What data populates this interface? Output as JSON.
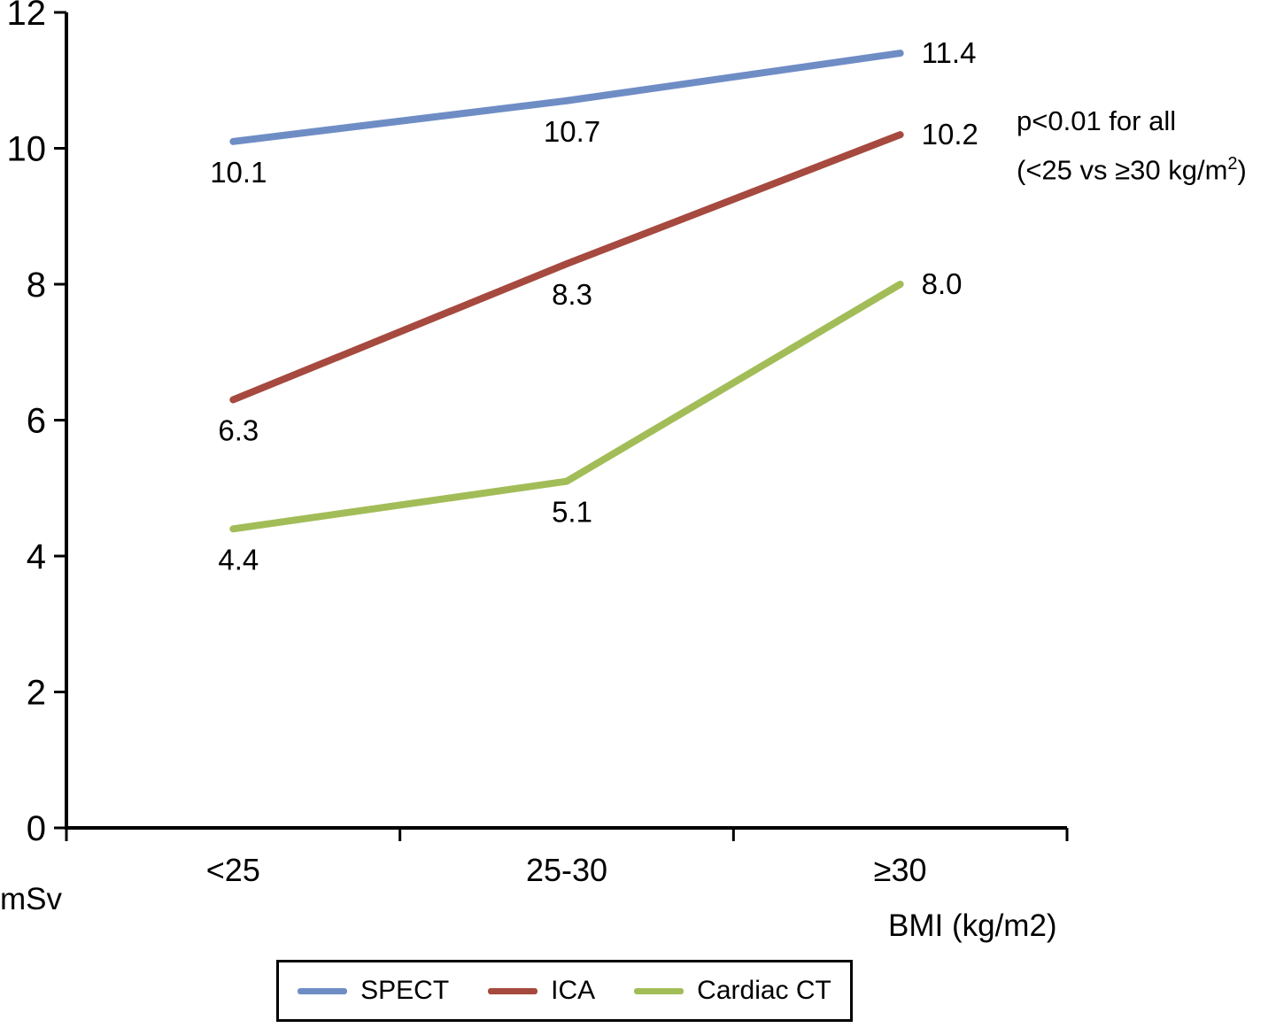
{
  "chart_data": {
    "type": "line",
    "title": "",
    "categories": [
      "<25",
      "25-30",
      "≥30"
    ],
    "series": [
      {
        "name": "SPECT",
        "color": "#6f8dc5",
        "values": [
          10.1,
          10.7,
          11.4
        ]
      },
      {
        "name": "ICA",
        "color": "#a6493f",
        "values": [
          6.3,
          8.3,
          10.2
        ]
      },
      {
        "name": "Cardiac CT",
        "color": "#a2bd58",
        "values": [
          4.4,
          5.1,
          8.0
        ]
      }
    ],
    "ylim": [
      0,
      12
    ],
    "yticks": [
      0,
      2,
      4,
      6,
      8,
      10,
      12
    ],
    "ylabel": "mSv",
    "xlabel": "BMI (kg/m2)",
    "grid": false,
    "legend_position": "bottom-boxed",
    "annotation": {
      "line1": "p<0.01 for all",
      "line2_pre": "(<25 vs ≥30 kg/m",
      "line2_sup": "2",
      "line2_post": ")"
    }
  }
}
